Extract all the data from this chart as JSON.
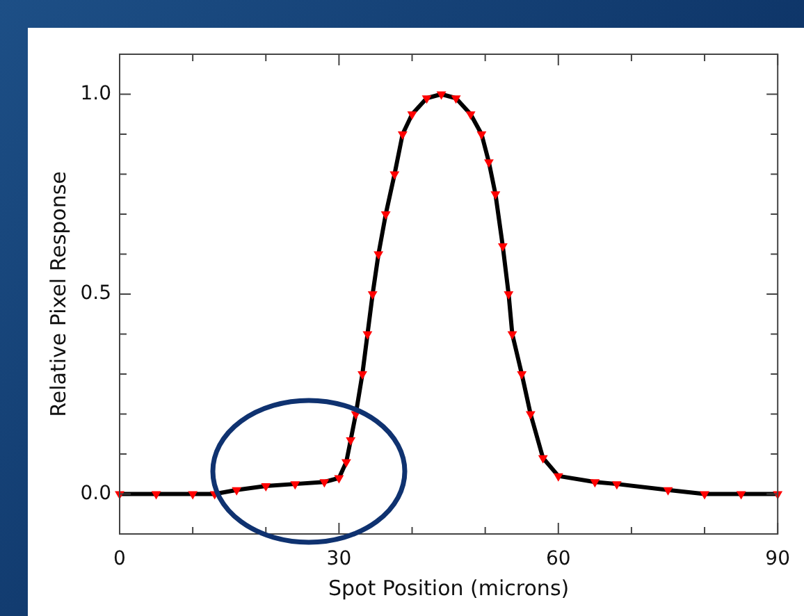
{
  "chart_data": {
    "type": "line",
    "xlabel": "Spot Position (microns)",
    "ylabel": "Relative Pixel Response",
    "x": [
      0,
      5,
      10,
      13,
      16,
      20,
      24,
      28,
      30,
      31,
      31.6,
      32.3,
      33.2,
      33.9,
      34.6,
      35.4,
      36.4,
      37.6,
      38.7,
      40,
      42,
      44,
      46,
      48,
      49.5,
      50.5,
      51.4,
      52.4,
      53.2,
      53.7,
      55,
      56.2,
      57.9,
      60,
      65,
      68,
      75,
      80,
      85,
      90
    ],
    "series": [
      {
        "color": "#000000",
        "marker": "none",
        "values": [
          0,
          0,
          0,
          0,
          0.01,
          0.02,
          0.025,
          0.03,
          0.04,
          0.08,
          0.135,
          0.2,
          0.3,
          0.4,
          0.5,
          0.6,
          0.7,
          0.8,
          0.9,
          0.95,
          0.99,
          1.0,
          0.99,
          0.95,
          0.9,
          0.83,
          0.75,
          0.62,
          0.5,
          0.4,
          0.3,
          0.2,
          0.09,
          0.045,
          0.03,
          0.025,
          0.01,
          0,
          0,
          0
        ]
      },
      {
        "type": "scatter",
        "color": "#ff0000",
        "marker": "triangle",
        "values": [
          0,
          0,
          0,
          0,
          0.01,
          0.02,
          0.025,
          0.03,
          0.04,
          0.08,
          0.135,
          0.2,
          0.3,
          0.4,
          0.5,
          0.6,
          0.7,
          0.8,
          0.9,
          0.95,
          0.99,
          1.0,
          0.99,
          0.95,
          0.9,
          0.83,
          0.75,
          0.62,
          0.5,
          0.4,
          0.3,
          0.2,
          0.09,
          0.045,
          0.03,
          0.025,
          0.01,
          0,
          0,
          0
        ]
      }
    ],
    "xlim": [
      0,
      90
    ],
    "xticks": [
      0,
      {
        "value": 10,
        "label": null
      },
      {
        "value": 20,
        "label": null
      },
      30,
      {
        "value": 40,
        "label": null
      },
      {
        "value": 50,
        "label": null
      },
      60,
      {
        "value": 70,
        "label": null
      },
      {
        "value": 80,
        "label": null
      },
      90
    ],
    "ylim": [
      -0.1,
      1.1
    ],
    "yticks": [
      {
        "value": -0.1,
        "label": null
      },
      {
        "value": 0,
        "label": "0.0"
      },
      {
        "value": 0.1,
        "label": null
      },
      {
        "value": 0.2,
        "label": null
      },
      {
        "value": 0.3,
        "label": null
      },
      {
        "value": 0.4,
        "label": null
      },
      {
        "value": 0.5,
        "label": "0.5"
      },
      {
        "value": 0.6,
        "label": null
      },
      {
        "value": 0.7,
        "label": null
      },
      {
        "value": 0.8,
        "label": null
      },
      {
        "value": 0.9,
        "label": null
      },
      {
        "value": 1.0,
        "label": "1.0"
      },
      {
        "value": 1.1,
        "label": null
      }
    ],
    "grid": false,
    "legend": false
  }
}
